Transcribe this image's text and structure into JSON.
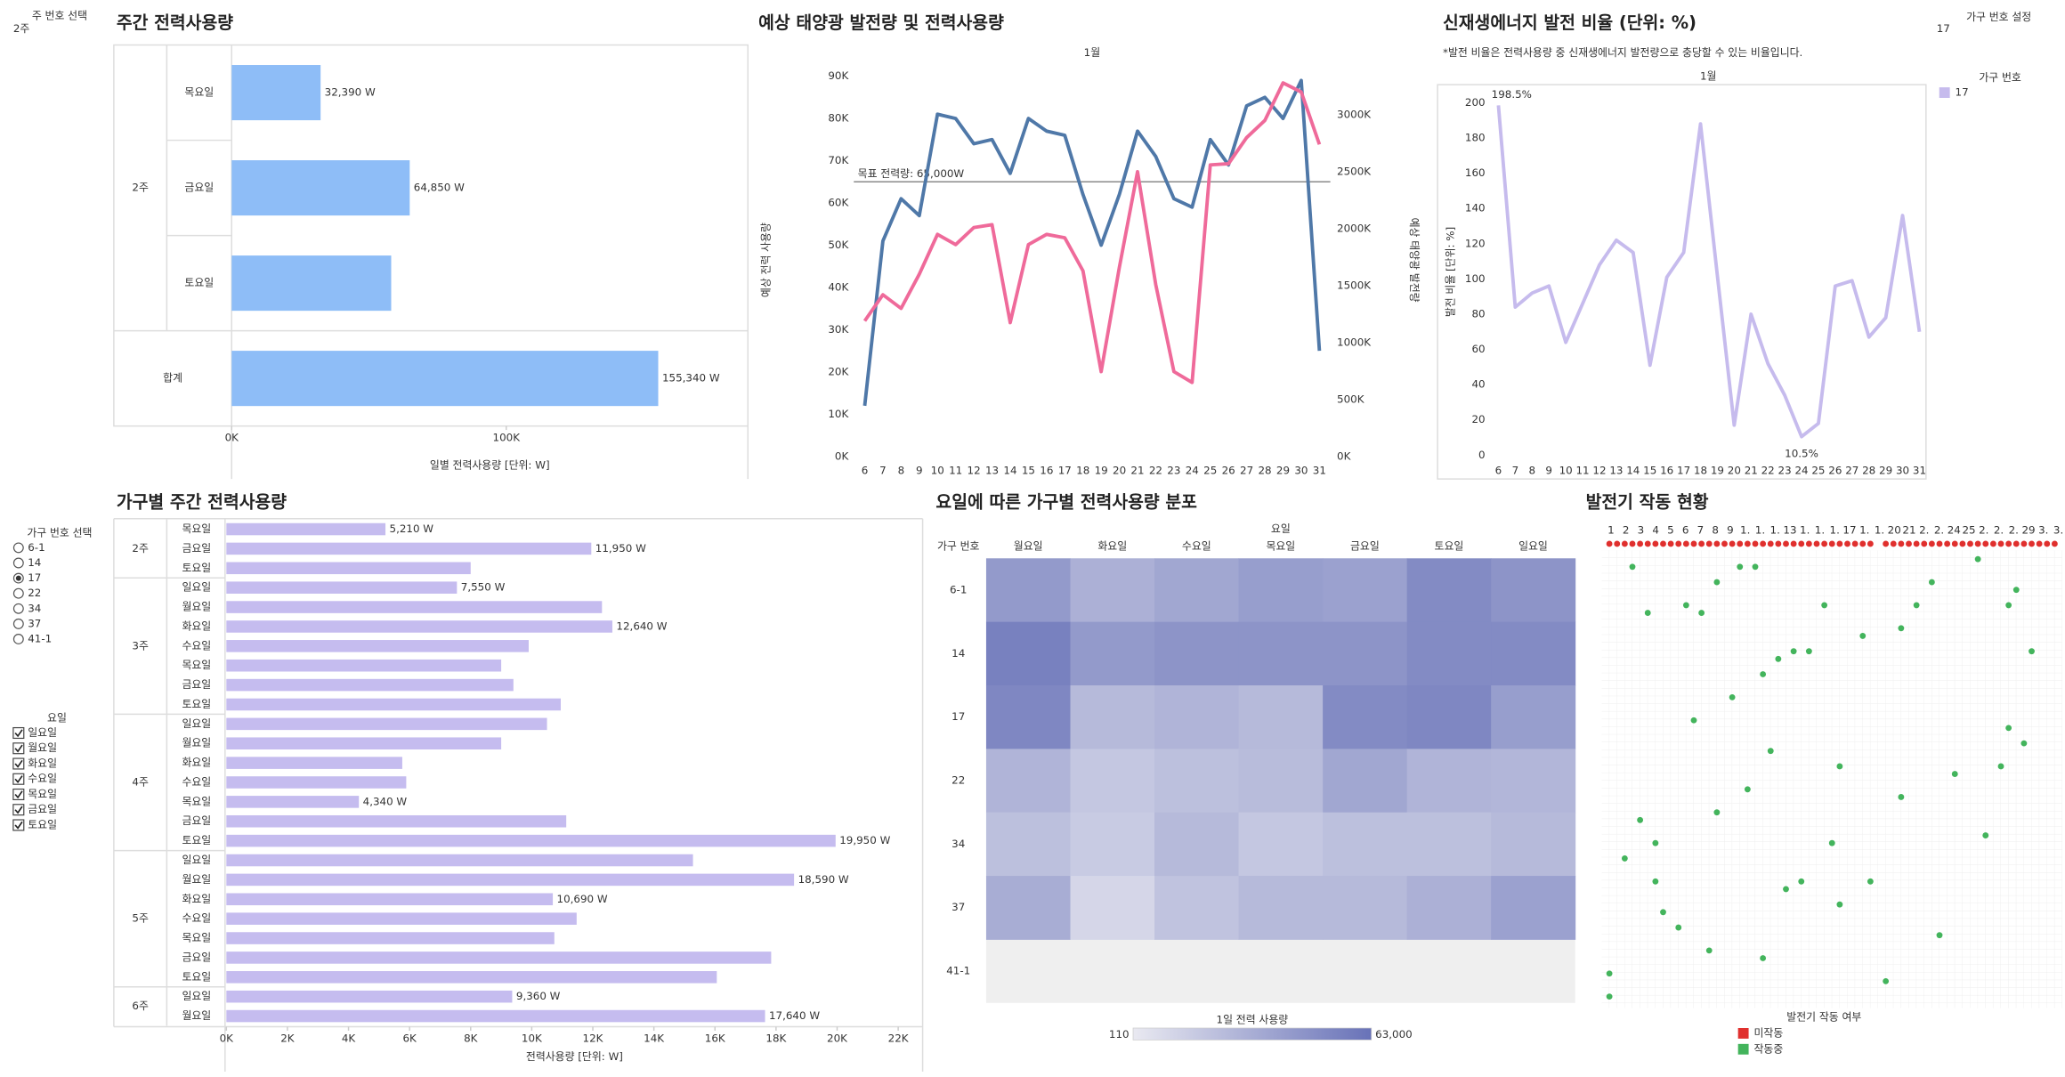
{
  "filters": {
    "week": {
      "title": "주 번호 선택",
      "value": "2주"
    },
    "household_setting": {
      "title": "가구 번호 설정",
      "value": "17"
    },
    "household": {
      "title": "가구 번호 선택",
      "options": [
        "6-1",
        "14",
        "17",
        "22",
        "34",
        "37",
        "41-1"
      ],
      "selected": "17"
    },
    "weekday": {
      "title": "요일",
      "options": [
        "일요일",
        "월요일",
        "화요일",
        "수요일",
        "목요일",
        "금요일",
        "토요일"
      ],
      "checked": [
        true,
        true,
        true,
        true,
        true,
        true,
        true
      ]
    }
  },
  "chart_data": [
    {
      "type": "hbar",
      "title": "주간 전력사용량",
      "color": "#8ebdf7",
      "groups": [
        {
          "name": "2주",
          "categories": [
            "목요일",
            "금요일",
            "토요일"
          ],
          "values": [
            32390,
            64850,
            58100
          ],
          "value_labels": [
            "32,390 W",
            "64,850 W",
            null
          ]
        },
        {
          "name": "합계",
          "categories": [
            null
          ],
          "values": [
            155340
          ],
          "value_labels": [
            "155,340 W"
          ]
        }
      ],
      "xlim": [
        0,
        188000
      ],
      "xticks": [
        {
          "value": 0,
          "label": "0K"
        },
        {
          "value": 100000,
          "label": "100K"
        }
      ],
      "xlabel": "일별 전력사용량 [단위: W]"
    },
    {
      "type": "line",
      "title": "예상 태양광 발전량 및 전력사용량",
      "subtitle": "1월",
      "x": [
        6,
        7,
        8,
        9,
        10,
        11,
        12,
        13,
        14,
        15,
        16,
        17,
        18,
        19,
        20,
        21,
        22,
        23,
        24,
        25,
        26,
        27,
        28,
        29,
        30,
        31
      ],
      "xticks": [
        6,
        7,
        8,
        9,
        10,
        11,
        12,
        13,
        14,
        15,
        16,
        17,
        18,
        19,
        20,
        21,
        22,
        23,
        24,
        25,
        26,
        27,
        28,
        29,
        30,
        31
      ],
      "xlim": [
        5.4,
        31.6
      ],
      "series": [
        {
          "name": "예상 전력 사용량",
          "color": "#4f78a8",
          "values": [
            12000,
            51000,
            61000,
            57000,
            81000,
            80000,
            74000,
            75000,
            67000,
            80000,
            77000,
            76000,
            62000,
            50000,
            62000,
            77000,
            71000,
            61000,
            59000,
            75000,
            69000,
            83000,
            85000,
            80000,
            89000,
            25000
          ]
        },
        {
          "name": "예상 태양광 발전량",
          "color": "#ef6a9a",
          "axis": "y2",
          "values": [
            1190000,
            1420000,
            1300000,
            1600000,
            1950000,
            1860000,
            2010000,
            2035000,
            1175000,
            1860000,
            1950000,
            1920000,
            1630000,
            745000,
            1660000,
            2500000,
            1510000,
            745000,
            650000,
            2560000,
            2570000,
            2800000,
            2950000,
            3280000,
            3200000,
            2740000
          ]
        }
      ],
      "ylim": [
        0,
        93000
      ],
      "yticks": [
        {
          "value": 0,
          "label": "0K"
        },
        {
          "value": 10000,
          "label": "10K"
        },
        {
          "value": 20000,
          "label": "20K"
        },
        {
          "value": 30000,
          "label": "30K"
        },
        {
          "value": 40000,
          "label": "40K"
        },
        {
          "value": 50000,
          "label": "50K"
        },
        {
          "value": 60000,
          "label": "60K"
        },
        {
          "value": 70000,
          "label": "70K"
        },
        {
          "value": 80000,
          "label": "80K"
        },
        {
          "value": 90000,
          "label": "90K"
        }
      ],
      "y2lim": [
        0,
        3450000
      ],
      "y2ticks": [
        {
          "value": 0,
          "label": "0K"
        },
        {
          "value": 500000,
          "label": "500K"
        },
        {
          "value": 1000000,
          "label": "1000K"
        },
        {
          "value": 1500000,
          "label": "1500K"
        },
        {
          "value": 2000000,
          "label": "2000K"
        },
        {
          "value": 2500000,
          "label": "2500K"
        },
        {
          "value": 3000000,
          "label": "3000K"
        }
      ],
      "reference_line": {
        "value": 65000,
        "label": "목표 전력량: 65,000W"
      }
    },
    {
      "type": "line",
      "title": "신재생에너지 발전 비율 (단위: %)",
      "note": "*발전 비율은 전력사용량 중 신재생에너지 발전량으로 충당할 수 있는 비율입니다.",
      "subtitle": "1월",
      "x": [
        6,
        7,
        8,
        9,
        10,
        11,
        12,
        13,
        14,
        15,
        16,
        17,
        18,
        19,
        20,
        21,
        22,
        23,
        24,
        25,
        26,
        27,
        28,
        29,
        30,
        31
      ],
      "xticks": [
        6,
        7,
        8,
        9,
        10,
        11,
        12,
        13,
        14,
        15,
        16,
        17,
        18,
        19,
        20,
        21,
        22,
        23,
        24,
        25,
        26,
        27,
        28,
        29,
        30,
        31
      ],
      "xlim": [
        5.53,
        31.39
      ],
      "series": [
        {
          "name": "17",
          "color": "#c6bbed",
          "values": [
            198.5,
            84,
            92,
            96,
            64,
            86,
            108,
            122,
            115,
            51,
            101,
            115,
            188,
            102,
            17,
            80,
            52,
            34,
            10.5,
            18,
            96,
            99,
            67,
            78,
            136,
            70
          ],
          "value_labels": [
            "198.5%",
            null,
            null,
            null,
            null,
            null,
            null,
            null,
            null,
            null,
            null,
            null,
            null,
            null,
            null,
            null,
            null,
            null,
            "10.5%",
            null,
            null,
            null,
            null,
            null,
            null,
            null
          ]
        }
      ],
      "ylim": [
        0,
        208
      ],
      "yticks": [
        0,
        20,
        40,
        60,
        80,
        100,
        120,
        140,
        160,
        180,
        200
      ],
      "ylabel": "발전 비율 [단위: %]",
      "legend_title": "가구 번호"
    },
    {
      "type": "hbar",
      "title": "가구별 주간 전력사용량",
      "color": "#c5bcef",
      "groups": [
        {
          "name": "2주",
          "categories": [
            "목요일",
            "금요일",
            "토요일"
          ],
          "values": [
            5210,
            11950,
            8000
          ],
          "value_labels": [
            "5,210 W",
            "11,950 W",
            null
          ]
        },
        {
          "name": "3주",
          "categories": [
            "일요일",
            "월요일",
            "화요일",
            "수요일",
            "목요일",
            "금요일",
            "토요일"
          ],
          "values": [
            7550,
            12300,
            12640,
            9900,
            9000,
            9400,
            10950
          ],
          "value_labels": [
            "7,550 W",
            null,
            "12,640 W",
            null,
            null,
            null,
            null
          ]
        },
        {
          "name": "4주",
          "categories": [
            "일요일",
            "월요일",
            "화요일",
            "수요일",
            "목요일",
            "금요일",
            "토요일"
          ],
          "values": [
            10500,
            9000,
            5760,
            5890,
            4340,
            11130,
            19950
          ],
          "value_labels": [
            null,
            null,
            null,
            null,
            "4,340 W",
            null,
            "19,950 W"
          ]
        },
        {
          "name": "5주",
          "categories": [
            "일요일",
            "월요일",
            "화요일",
            "수요일",
            "목요일",
            "금요일",
            "토요일"
          ],
          "values": [
            15280,
            18590,
            10690,
            11470,
            10740,
            17840,
            16060
          ],
          "value_labels": [
            null,
            "18,590 W",
            "10,690 W",
            null,
            null,
            null,
            null
          ]
        },
        {
          "name": "6주",
          "categories": [
            "일요일",
            "월요일"
          ],
          "values": [
            9360,
            17640
          ],
          "value_labels": [
            "9,360 W",
            "17,640 W"
          ]
        }
      ],
      "xlim": [
        0,
        22800
      ],
      "xticks": [
        {
          "value": 0,
          "label": "0K"
        },
        {
          "value": 2000,
          "label": "2K"
        },
        {
          "value": 4000,
          "label": "4K"
        },
        {
          "value": 6000,
          "label": "6K"
        },
        {
          "value": 8000,
          "label": "8K"
        },
        {
          "value": 10000,
          "label": "10K"
        },
        {
          "value": 12000,
          "label": "12K"
        },
        {
          "value": 14000,
          "label": "14K"
        },
        {
          "value": 16000,
          "label": "16K"
        },
        {
          "value": 18000,
          "label": "18K"
        },
        {
          "value": 20000,
          "label": "20K"
        },
        {
          "value": 22000,
          "label": "22K"
        }
      ],
      "xlabel": "전력사용량 [단위: W]"
    },
    {
      "type": "heatmap",
      "title": "요일에 따른 가구별 전력사용량 분포",
      "x_title": "요일",
      "y_title": "가구 번호",
      "columns": [
        "월요일",
        "화요일",
        "수요일",
        "목요일",
        "금요일",
        "토요일",
        "일요일"
      ],
      "rows": [
        "6-1",
        "14",
        "17",
        "22",
        "34",
        "37",
        "41-1"
      ],
      "values": [
        [
          42000,
          30000,
          35000,
          40000,
          38000,
          50000,
          45000
        ],
        [
          55000,
          42000,
          45000,
          45000,
          45000,
          50000,
          50000
        ],
        [
          52000,
          25000,
          28000,
          25000,
          50000,
          52000,
          40000
        ],
        [
          28000,
          18000,
          22000,
          24000,
          35000,
          28000,
          27000
        ],
        [
          22000,
          16000,
          25000,
          18000,
          22000,
          22000,
          25000
        ],
        [
          32000,
          10000,
          20000,
          25000,
          25000,
          30000,
          38000
        ],
        [
          null,
          null,
          null,
          null,
          null,
          null,
          null
        ]
      ],
      "zlim": [
        110,
        63000
      ],
      "zticks": [
        110,
        {
          "value": 63000,
          "label": "63,000"
        }
      ],
      "colorbar_title": "1일 전력 사용량",
      "colors": [
        "#e9e9f1",
        "#6872b8"
      ]
    },
    {
      "type": "scatter",
      "title": "발전기 작동 현황",
      "column_labels": [
        "1",
        "2",
        "3",
        "4",
        "5",
        "6",
        "7",
        "8",
        "9",
        "1.",
        "1.",
        "1.",
        "13",
        "1.",
        "1.",
        "1.",
        "17",
        "1.",
        "1.",
        "20",
        "21",
        "2.",
        "2.",
        "24",
        "25",
        "2.",
        "2.",
        "2.",
        "29",
        "3.",
        "3."
      ],
      "legend_title": "발전기 작동 여부",
      "xlim": [
        0,
        60
      ],
      "ylim": [
        0,
        60
      ],
      "series": [
        {
          "name": "미작동",
          "color": "#e0302e",
          "x": [
            1,
            2,
            3,
            4,
            5,
            6,
            7,
            8,
            9,
            10,
            11,
            12,
            13,
            14,
            15,
            16,
            17,
            18,
            19,
            20,
            21,
            22,
            23,
            24,
            25,
            26,
            27,
            28,
            29,
            30,
            31,
            32,
            33,
            34,
            35,
            37,
            38,
            39,
            40,
            41,
            42,
            43,
            44,
            45,
            46,
            47,
            48,
            49,
            50,
            51,
            52,
            53,
            54,
            55,
            56,
            57,
            58,
            59
          ],
          "y": [
            0,
            0,
            0,
            0,
            0,
            0,
            0,
            0,
            0,
            0,
            0,
            0,
            0,
            0,
            0,
            0,
            0,
            0,
            0,
            0,
            0,
            0,
            0,
            0,
            0,
            0,
            0,
            0,
            0,
            0,
            0,
            0,
            0,
            0,
            0,
            0,
            0,
            0,
            0,
            0,
            0,
            0,
            0,
            0,
            0,
            0,
            0,
            0,
            0,
            0,
            0,
            0,
            0,
            0,
            0,
            0,
            0,
            0
          ]
        },
        {
          "name": "작동중",
          "color": "#43b45c",
          "x": [
            4,
            15,
            18,
            20,
            49,
            43,
            6,
            11,
            13,
            29,
            41,
            54,
            39,
            53,
            25,
            27,
            23,
            21,
            34,
            56,
            17,
            12,
            53,
            55,
            52,
            31,
            22,
            46,
            19,
            39,
            15,
            5,
            50,
            7,
            3,
            30,
            24,
            26,
            7,
            35,
            31,
            8,
            10,
            14,
            44,
            21,
            1,
            37,
            1
          ],
          "y": [
            3,
            5,
            3,
            3,
            2,
            5,
            9,
            8,
            9,
            8,
            8,
            6,
            11,
            8,
            14,
            14,
            15,
            17,
            12,
            14,
            20,
            23,
            24,
            26,
            29,
            29,
            27,
            30,
            32,
            33,
            35,
            36,
            38,
            39,
            41,
            39,
            45,
            44,
            44,
            44,
            47,
            48,
            50,
            53,
            51,
            54,
            56,
            57,
            59
          ]
        }
      ]
    }
  ]
}
